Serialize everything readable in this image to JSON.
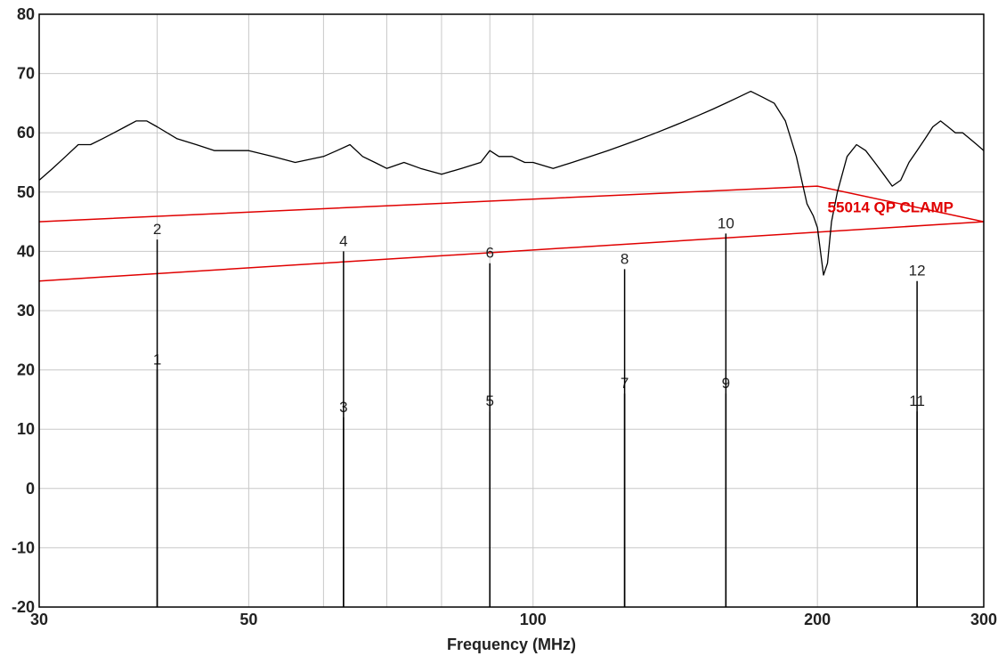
{
  "chart_data": {
    "type": "line",
    "title": "",
    "xlabel": "Frequency (MHz)",
    "ylabel": "",
    "x_scale": "log",
    "xlim": [
      30,
      300
    ],
    "ylim": [
      -20,
      80
    ],
    "grid": true,
    "x_ticks": [
      {
        "value": 30,
        "label": "30"
      },
      {
        "value": 50,
        "label": "50"
      },
      {
        "value": 100,
        "label": "100"
      },
      {
        "value": 200,
        "label": "200"
      },
      {
        "value": 300,
        "label": "300"
      }
    ],
    "x_gridlines": [
      30,
      40,
      50,
      60,
      70,
      80,
      90,
      100,
      200,
      300
    ],
    "y_ticks": [
      80,
      70,
      60,
      50,
      40,
      30,
      20,
      10,
      0,
      -10,
      -20
    ],
    "colors": {
      "trace": "#000000",
      "limit": "#e00000",
      "grid": "#c8c8c8"
    },
    "series": [
      {
        "x": [
          30,
          31,
          32,
          33,
          34,
          35,
          36,
          37,
          38,
          39,
          40,
          42,
          44,
          46,
          48,
          50,
          53,
          56,
          60,
          62,
          64,
          66,
          68,
          70,
          73,
          76,
          80,
          84,
          88,
          90,
          92,
          95,
          98,
          100,
          105,
          110,
          115,
          120,
          125,
          130,
          135,
          140,
          145,
          150,
          155,
          160,
          165,
          170,
          175,
          180,
          185,
          190,
          195,
          198,
          200,
          203,
          205,
          207,
          210,
          215,
          220,
          225,
          230,
          235,
          240,
          245,
          250,
          255,
          260,
          265,
          270,
          275,
          280,
          285,
          290,
          295,
          300
        ],
        "y": [
          52,
          54,
          56,
          58,
          58,
          59,
          60,
          61,
          62,
          62,
          61,
          59,
          58,
          57,
          57,
          57,
          56,
          55,
          56,
          57,
          58,
          56,
          55,
          54,
          55,
          54,
          53,
          54,
          55,
          57,
          56,
          56,
          55,
          55,
          54,
          55,
          56,
          57,
          58,
          59,
          60,
          61,
          62,
          63,
          64,
          65,
          66,
          67,
          66,
          65,
          62,
          56,
          48,
          46,
          44,
          36,
          38,
          45,
          50,
          56,
          58,
          57,
          55,
          53,
          51,
          52,
          55,
          57,
          59,
          61,
          62,
          61,
          60,
          60,
          59,
          58,
          57
        ]
      }
    ],
    "limit_lines": [
      {
        "x": [
          30,
          200,
          300
        ],
        "y": [
          45,
          51,
          45
        ]
      },
      {
        "x": [
          30,
          300
        ],
        "y": [
          35,
          45
        ]
      }
    ],
    "limit_label": "55014 QP CLAMP",
    "limit_label_at": {
      "x": 205,
      "y": 47.5
    },
    "markers": [
      {
        "id": "1",
        "x": 40,
        "y": 20
      },
      {
        "id": "2",
        "x": 40,
        "y": 42
      },
      {
        "id": "3",
        "x": 63,
        "y": 12
      },
      {
        "id": "4",
        "x": 63,
        "y": 40
      },
      {
        "id": "5",
        "x": 90,
        "y": 13
      },
      {
        "id": "6",
        "x": 90,
        "y": 38
      },
      {
        "id": "7",
        "x": 125,
        "y": 16
      },
      {
        "id": "8",
        "x": 125,
        "y": 37
      },
      {
        "id": "9",
        "x": 160,
        "y": 16
      },
      {
        "id": "10",
        "x": 160,
        "y": 43
      },
      {
        "id": "11",
        "x": 255,
        "y": 13
      },
      {
        "id": "12",
        "x": 255,
        "y": 35
      }
    ]
  }
}
